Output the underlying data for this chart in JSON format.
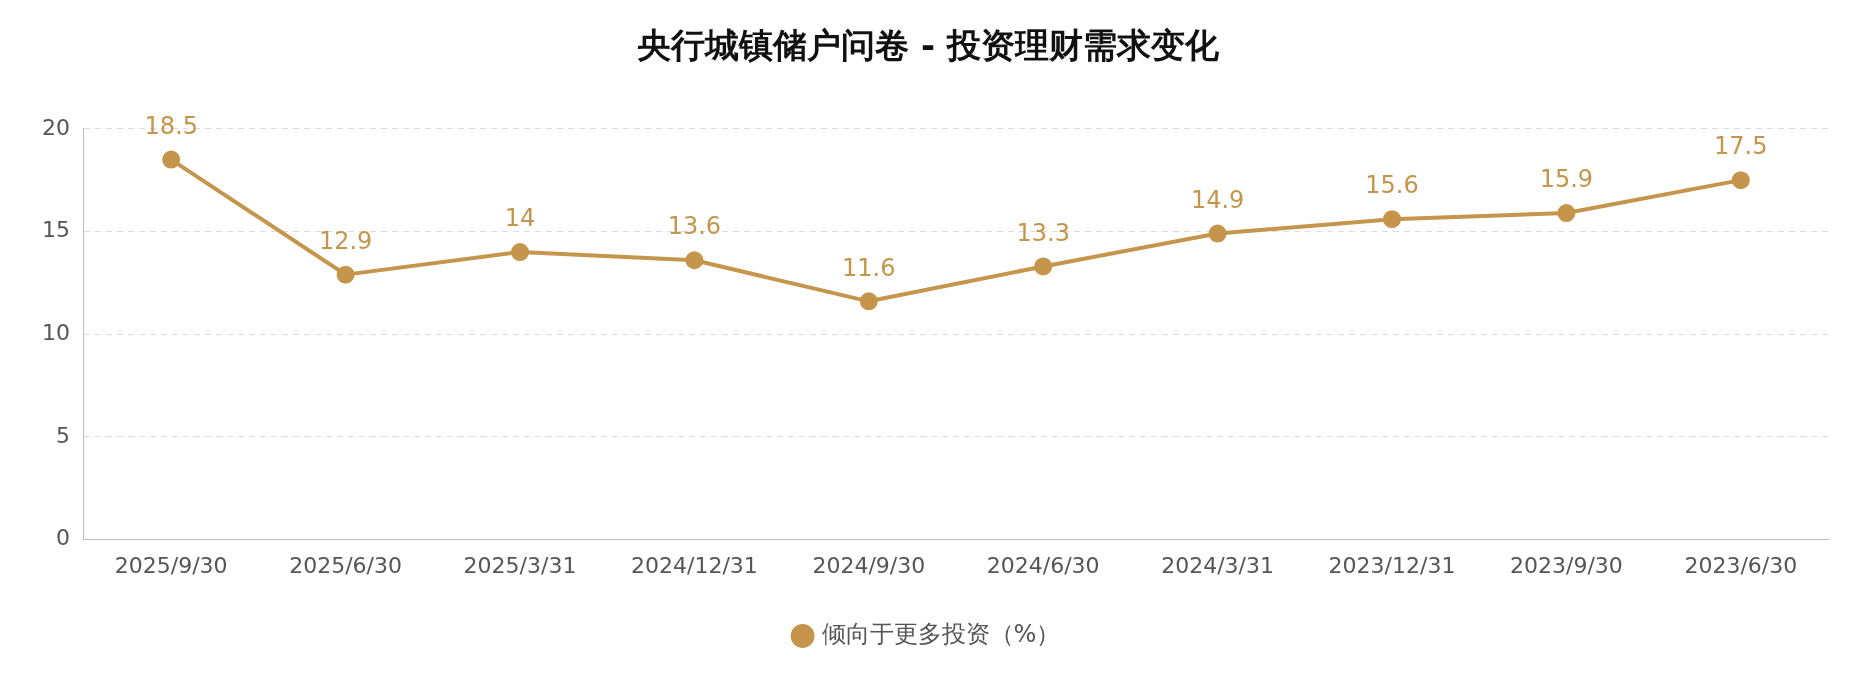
{
  "chart_data": {
    "type": "line",
    "title": "央行城镇储户问卷 - 投资理财需求变化",
    "categories": [
      "2025/9/30",
      "2025/6/30",
      "2025/3/31",
      "2024/12/31",
      "2024/9/30",
      "2024/6/30",
      "2024/3/31",
      "2023/12/31",
      "2023/9/30",
      "2023/6/30"
    ],
    "series": [
      {
        "name": "倾向于更多投资（%）",
        "color": "#c4954a",
        "values": [
          18.5,
          12.9,
          14,
          13.6,
          11.6,
          13.3,
          14.9,
          15.6,
          15.9,
          17.5
        ]
      }
    ],
    "ylim": [
      0,
      20
    ],
    "yticks": [
      0,
      5,
      10,
      15,
      20
    ],
    "grid": "y",
    "legend": "bottom",
    "marker": "circle",
    "line_style": "solid",
    "data_labels": true
  }
}
